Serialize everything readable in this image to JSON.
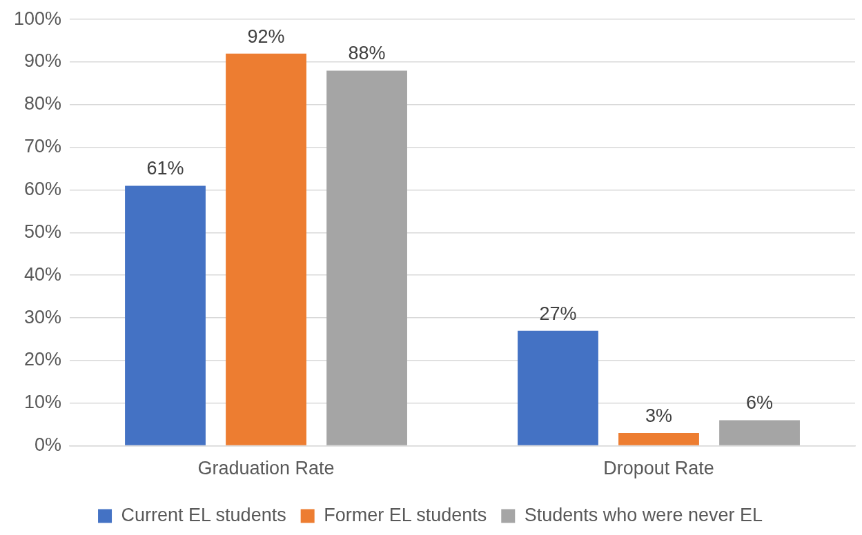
{
  "chart_data": {
    "type": "bar",
    "categories": [
      "Graduation Rate",
      "Dropout Rate"
    ],
    "series": [
      {
        "name": "Current EL students",
        "color": "#4472c4",
        "values": [
          61,
          27
        ],
        "value_labels": [
          "61%",
          "27%"
        ]
      },
      {
        "name": "Former EL students",
        "color": "#ed7d31",
        "values": [
          92,
          3
        ],
        "value_labels": [
          "92%",
          "3%"
        ]
      },
      {
        "name": "Students who were never EL",
        "color": "#a5a5a5",
        "values": [
          88,
          6
        ],
        "value_labels": [
          "88%",
          "6%"
        ]
      }
    ],
    "ylim": [
      0,
      100
    ],
    "yticks": [
      {
        "value": 0,
        "label": "0%"
      },
      {
        "value": 10,
        "label": "10%"
      },
      {
        "value": 20,
        "label": "20%"
      },
      {
        "value": 30,
        "label": "30%"
      },
      {
        "value": 40,
        "label": "40%"
      },
      {
        "value": 50,
        "label": "50%"
      },
      {
        "value": 60,
        "label": "60%"
      },
      {
        "value": 70,
        "label": "70%"
      },
      {
        "value": 80,
        "label": "80%"
      },
      {
        "value": 90,
        "label": "90%"
      },
      {
        "value": 100,
        "label": "100%"
      }
    ],
    "grid": "y",
    "legend": "bottom"
  }
}
